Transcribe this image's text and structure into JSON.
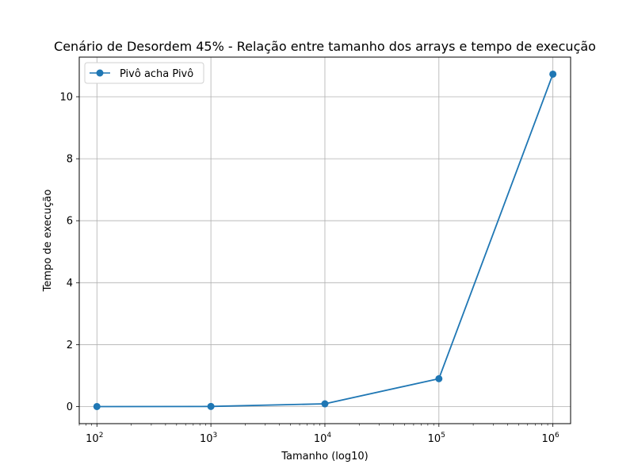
{
  "chart_data": {
    "type": "line",
    "title": "Cenário de Desordem 45% - Relação entre tamanho dos arrays e tempo de execução",
    "xlabel": "Tamanho (log10)",
    "ylabel": "Tempo de execução",
    "x_scale": "log10",
    "x": [
      100,
      1000,
      10000,
      100000,
      1000000
    ],
    "x_ticks": [
      {
        "value": 100,
        "base": "10",
        "exp": "2"
      },
      {
        "value": 1000,
        "base": "10",
        "exp": "3"
      },
      {
        "value": 10000,
        "base": "10",
        "exp": "4"
      },
      {
        "value": 100000,
        "base": "10",
        "exp": "5"
      },
      {
        "value": 1000000,
        "base": "10",
        "exp": "6"
      }
    ],
    "y_ticks": [
      "0",
      "2",
      "4",
      "6",
      "8",
      "10"
    ],
    "xlim": [
      70,
      1430000
    ],
    "ylim": [
      -0.55,
      11.28
    ],
    "grid": true,
    "legend_position": "top-left",
    "series": [
      {
        "name": "Pivô acha Pivô",
        "color": "#1f77b4",
        "marker": "circle",
        "values": [
          0.001,
          0.005,
          0.09,
          0.9,
          10.73
        ]
      }
    ]
  }
}
